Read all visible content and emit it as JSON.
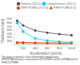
{
  "chart_data": {
    "type": "line",
    "xlabel": "Acceleration (rpm/s)",
    "ylabel": "Thickness (nm)",
    "xlim": [
      50,
      1100
    ],
    "ylim": [
      200,
      950
    ],
    "xticks": [
      200,
      400,
      600,
      800,
      1000
    ],
    "yticks": [
      300,
      400,
      500,
      600,
      700,
      800,
      900
    ],
    "grid": false,
    "legend": "upper right",
    "x": [
      100,
      200,
      400,
      600,
      800,
      1000
    ],
    "series": [
      {
        "name": "Toluene (110°C)",
        "color": "#444444",
        "values": [
          860,
          730,
          590,
          530,
          490,
          460
        ],
        "marker": "square",
        "line_style": "solid"
      },
      {
        "name": "Chlorobenzene (131°C)",
        "color": "#00ccff",
        "values": [
          800,
          560,
          370,
          310,
          280,
          265
        ],
        "marker": "circle",
        "line_style": "solid"
      },
      {
        "name": "P3HT:PCBM (1%:1%)",
        "color": "#ff2200",
        "values": [
          270,
          262,
          255,
          250,
          247,
          244
        ],
        "marker": "diamond",
        "line_style": "solid"
      },
      {
        "name": "P3HT:PCBM (1%)",
        "color": "#cc7700",
        "values": [
          238,
          235,
          232,
          230,
          228,
          226
        ],
        "marker": "triangle",
        "line_style": "solid"
      }
    ],
    "annotations": [
      "The values in brackets is the solvent boiling temperatures.",
      "P3HT:PCBM thickness is measured at 5% of P3HT and 4% of PCBM and 1% P3HT:2% PCBM."
    ]
  }
}
